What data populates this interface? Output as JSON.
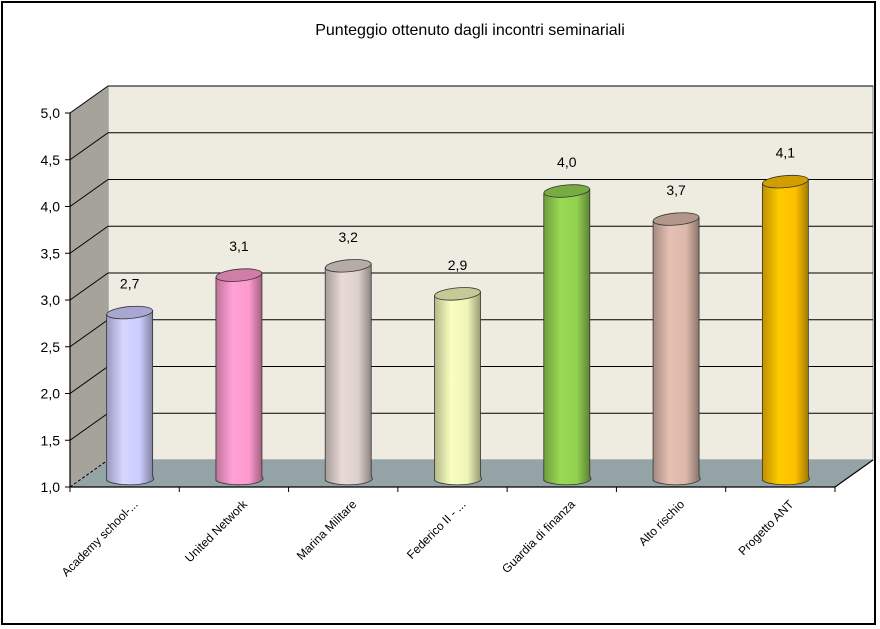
{
  "chart_data": {
    "type": "bar",
    "style": "3d-cylinder",
    "title": "Punteggio ottenuto dagli incontri seminariali",
    "xlabel": "",
    "ylabel": "",
    "ylim": [
      1.0,
      5.0
    ],
    "ytick_step": 0.5,
    "yticks": [
      "1,0",
      "1,5",
      "2,0",
      "2,5",
      "3,0",
      "3,5",
      "4,0",
      "4,5",
      "5,0"
    ],
    "grid": true,
    "legend": "none",
    "categories": [
      "Academy school-...",
      "United Network",
      "Marina Militare",
      "Federico II - ...",
      "Guardia di finanza",
      "Alto rischio",
      "Progetto ANT"
    ],
    "values": [
      2.7,
      3.1,
      3.2,
      2.9,
      4.0,
      3.7,
      4.1
    ],
    "data_labels": [
      "2,7",
      "3,1",
      "3,2",
      "2,9",
      "4,0",
      "3,7",
      "4,1"
    ],
    "colors": [
      "#ccccff",
      "#ff99cc",
      "#ddd0cc",
      "#eef5b8",
      "#92d050",
      "#dbb8aa",
      "#ffc000"
    ],
    "wall_color": "#eeece1",
    "side_wall_color": "#a6a39b",
    "floor_color": "#94a3a6"
  }
}
